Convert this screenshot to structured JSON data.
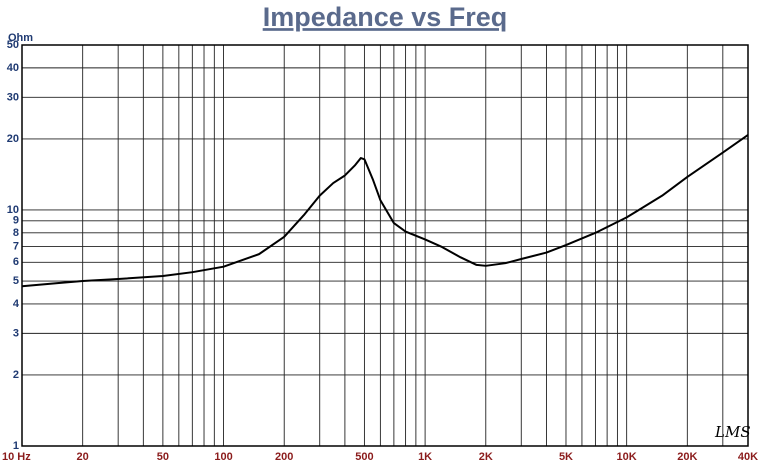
{
  "chart_data": {
    "type": "line",
    "title": "Impedance vs Freq",
    "y_unit": "Ohm",
    "annotation": "LMS",
    "x_log": true,
    "y_log": true,
    "grid": true,
    "xlim": [
      10,
      40000
    ],
    "ylim": [
      1,
      50
    ],
    "xticks": [
      {
        "value": 10,
        "label": "10 Hz"
      },
      20,
      50,
      100,
      200,
      500,
      {
        "value": 1000,
        "label": "1K"
      },
      {
        "value": 2000,
        "label": "2K"
      },
      {
        "value": 5000,
        "label": "5K"
      },
      {
        "value": 10000,
        "label": "10K"
      },
      {
        "value": 20000,
        "label": "20K"
      },
      {
        "value": 40000,
        "label": "40K"
      }
    ],
    "x_minor_grid": [
      30,
      40,
      60,
      70,
      80,
      90,
      300,
      400,
      600,
      700,
      800,
      900,
      3000,
      4000,
      6000,
      7000,
      8000,
      9000,
      30000
    ],
    "yticks": [
      1,
      2,
      3,
      4,
      5,
      6,
      7,
      8,
      9,
      10,
      20,
      30,
      40,
      50
    ],
    "x": [
      10,
      15,
      20,
      30,
      50,
      70,
      100,
      150,
      200,
      250,
      300,
      350,
      400,
      450,
      480,
      500,
      550,
      600,
      700,
      800,
      1000,
      1200,
      1500,
      1800,
      2000,
      2500,
      3000,
      4000,
      5000,
      7000,
      10000,
      15000,
      20000,
      30000,
      40000
    ],
    "series": [
      {
        "name": "Impedance",
        "color": "#000000",
        "values": [
          4.75,
          4.9,
          5.0,
          5.1,
          5.25,
          5.45,
          5.75,
          6.5,
          7.7,
          9.5,
          11.5,
          13.0,
          14.0,
          15.5,
          16.6,
          16.4,
          13.5,
          11.0,
          8.8,
          8.1,
          7.5,
          7.0,
          6.3,
          5.85,
          5.8,
          5.95,
          6.2,
          6.6,
          7.1,
          8.0,
          9.3,
          11.5,
          13.8,
          17.5,
          20.8
        ]
      }
    ]
  }
}
